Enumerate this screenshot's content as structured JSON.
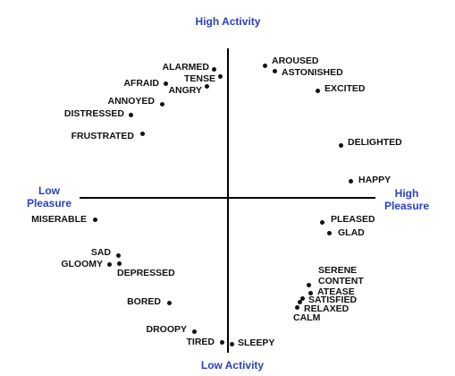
{
  "axes": {
    "top_label": "High Activity",
    "bottom_label": "Low Activity",
    "left_label_line1": "Low",
    "left_label_line2": "Pleasure",
    "right_label_line1": "High",
    "right_label_line2": "Pleasure",
    "color": "#2a3fbf"
  },
  "emotions": [
    {
      "id": "aroused",
      "label": "AROUSED"
    },
    {
      "id": "astonished",
      "label": "ASTONISHED"
    },
    {
      "id": "excited",
      "label": "EXCITED"
    },
    {
      "id": "delighted",
      "label": "DELIGHTED"
    },
    {
      "id": "happy",
      "label": "HAPPY"
    },
    {
      "id": "pleased",
      "label": "PLEASED"
    },
    {
      "id": "glad",
      "label": "GLAD"
    },
    {
      "id": "serene",
      "label": "SERENE"
    },
    {
      "id": "content",
      "label": "CONTENT"
    },
    {
      "id": "atease",
      "label": "ATEASE"
    },
    {
      "id": "satisfied",
      "label": "SATISFIED"
    },
    {
      "id": "relaxed",
      "label": "RELAXED"
    },
    {
      "id": "calm",
      "label": "CALM"
    },
    {
      "id": "sleepy",
      "label": "SLEEPY"
    },
    {
      "id": "tired",
      "label": "TIRED"
    },
    {
      "id": "droopy",
      "label": "DROOPY"
    },
    {
      "id": "bored",
      "label": "BORED"
    },
    {
      "id": "depressed",
      "label": "DEPRESSED"
    },
    {
      "id": "gloomy",
      "label": "GLOOMY"
    },
    {
      "id": "sad",
      "label": "SAD"
    },
    {
      "id": "miserable",
      "label": "MISERABLE"
    },
    {
      "id": "frustrated",
      "label": "FRUSTRATED"
    },
    {
      "id": "distressed",
      "label": "DISTRESSED"
    },
    {
      "id": "annoyed",
      "label": "ANNOYED"
    },
    {
      "id": "afraid",
      "label": "AFRAID"
    },
    {
      "id": "angry",
      "label": "ANGRY"
    },
    {
      "id": "tense",
      "label": "TENSE"
    },
    {
      "id": "alarmed",
      "label": "ALARMED"
    }
  ]
}
